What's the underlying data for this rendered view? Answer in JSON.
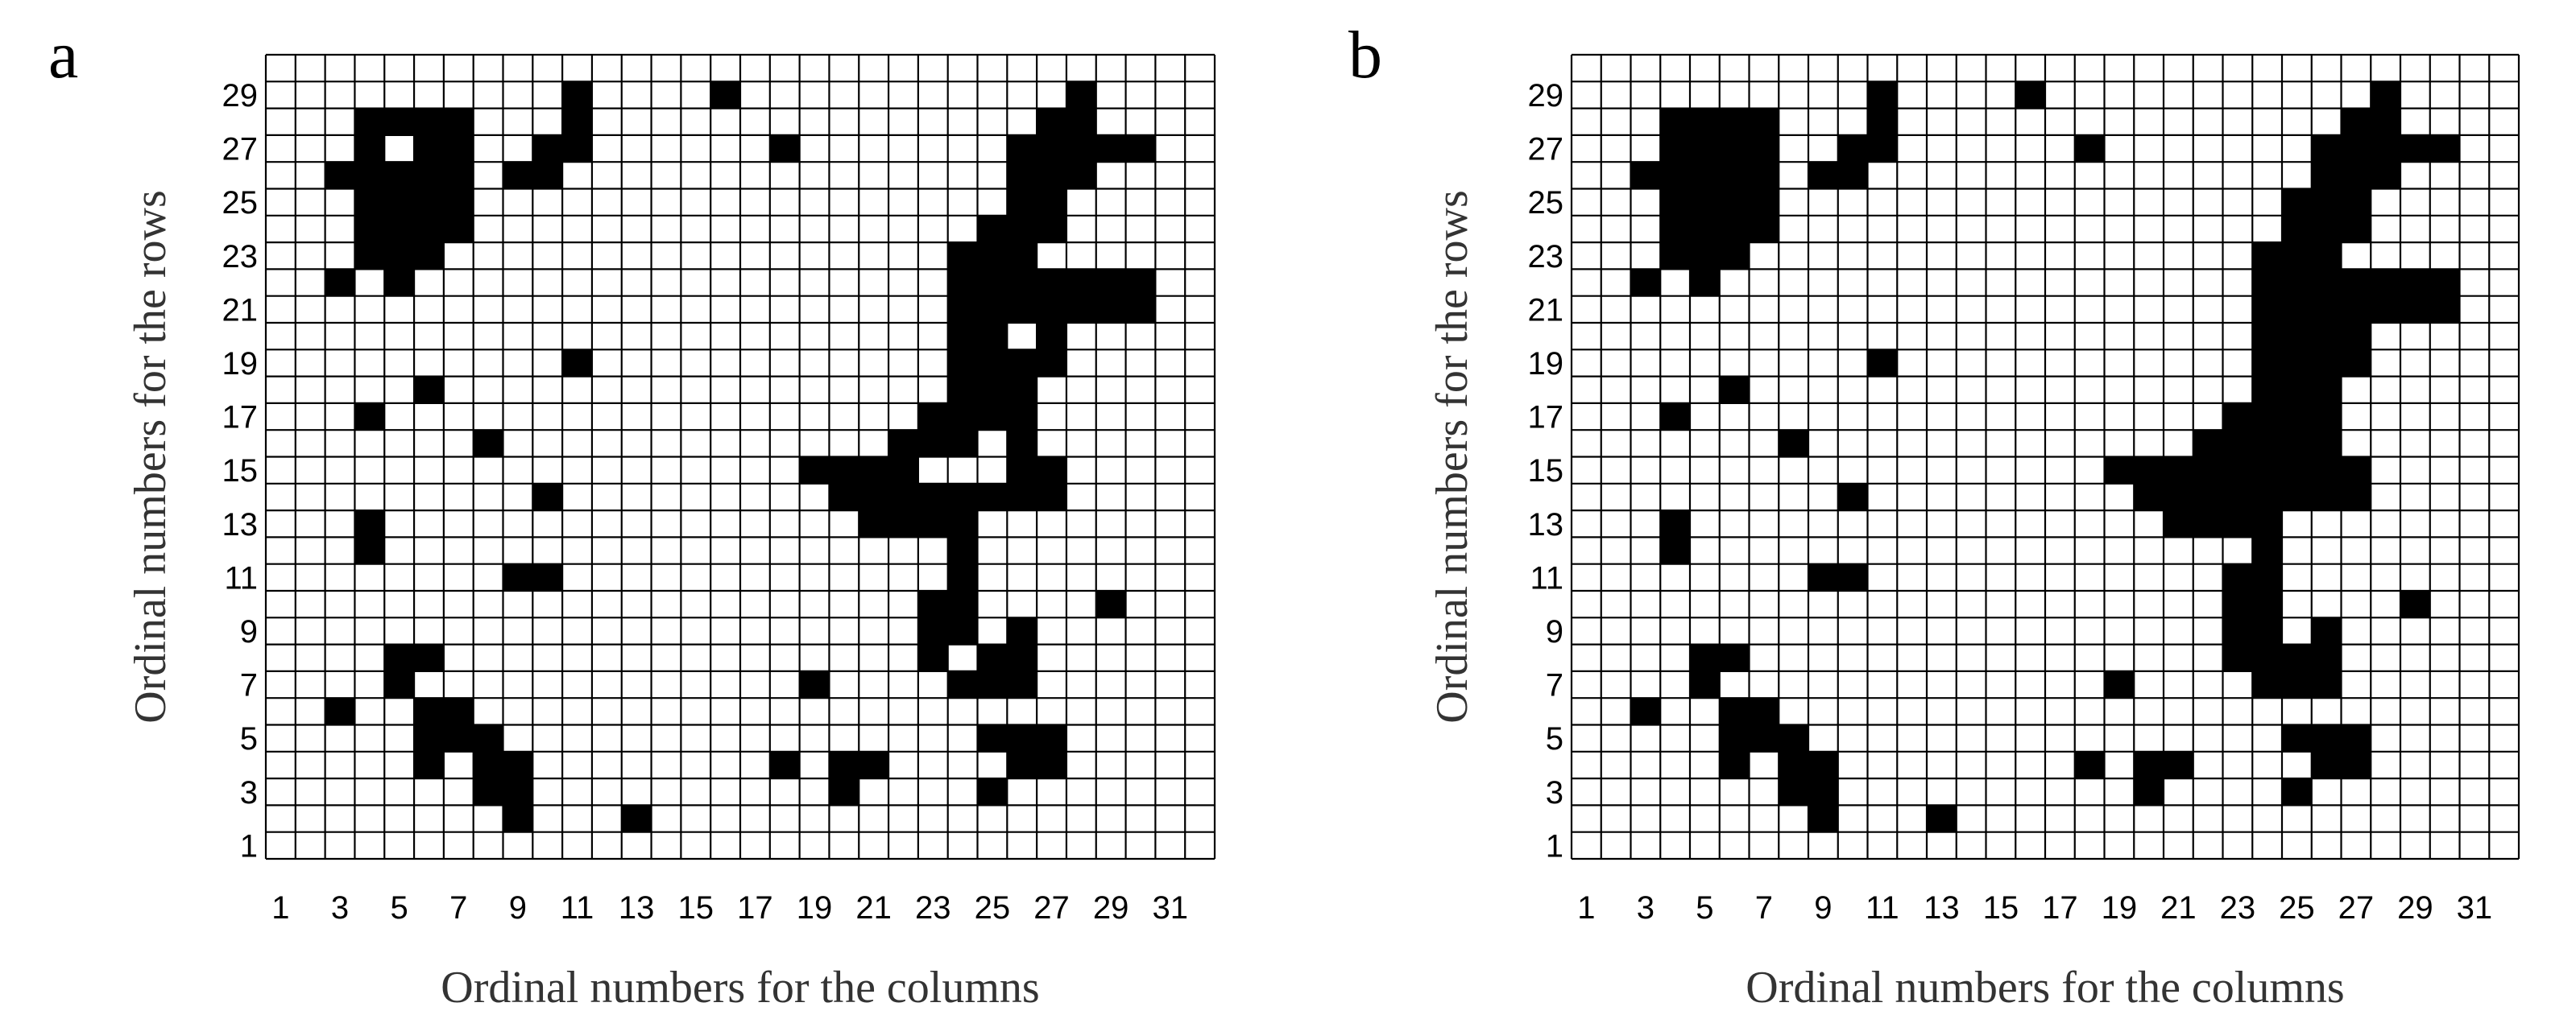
{
  "panels": [
    {
      "letter": "a"
    },
    {
      "letter": "b"
    }
  ],
  "chart_data": [
    {
      "type": "heatmap",
      "panel": "a",
      "title": "",
      "xlabel": "Ordinal numbers for the columns",
      "ylabel": "Ordinal numbers for the rows",
      "x_ticks": [
        1,
        3,
        5,
        7,
        9,
        11,
        13,
        15,
        17,
        19,
        21,
        23,
        25,
        27,
        29,
        31
      ],
      "y_ticks": [
        1,
        3,
        5,
        7,
        9,
        11,
        13,
        15,
        17,
        19,
        21,
        23,
        25,
        27,
        29
      ],
      "x_range": [
        1,
        32
      ],
      "y_range": [
        1,
        30
      ],
      "grid": true,
      "filled_color": "#000000",
      "empty_color": "#ffffff",
      "filled_cells": [
        {
          "row": 29,
          "cols": [
            11,
            16,
            28
          ]
        },
        {
          "row": 28,
          "cols": [
            4,
            5,
            6,
            7,
            11,
            27,
            28
          ]
        },
        {
          "row": 27,
          "cols": [
            4,
            6,
            7,
            10,
            11,
            18,
            26,
            27,
            28,
            29,
            30
          ]
        },
        {
          "row": 26,
          "cols": [
            3,
            4,
            5,
            6,
            7,
            9,
            10,
            26,
            27,
            28
          ]
        },
        {
          "row": 25,
          "cols": [
            4,
            5,
            6,
            7,
            26,
            27
          ]
        },
        {
          "row": 24,
          "cols": [
            4,
            5,
            6,
            7,
            25,
            26,
            27
          ]
        },
        {
          "row": 23,
          "cols": [
            4,
            5,
            6,
            24,
            25,
            26
          ]
        },
        {
          "row": 22,
          "cols": [
            3,
            5,
            24,
            25,
            26,
            27,
            28,
            29,
            30
          ]
        },
        {
          "row": 21,
          "cols": [
            24,
            25,
            26,
            27,
            28,
            29,
            30
          ]
        },
        {
          "row": 20,
          "cols": [
            24,
            25,
            27
          ]
        },
        {
          "row": 19,
          "cols": [
            11,
            24,
            25,
            26,
            27
          ]
        },
        {
          "row": 18,
          "cols": [
            6,
            24,
            25,
            26
          ]
        },
        {
          "row": 17,
          "cols": [
            4,
            23,
            24,
            25,
            26
          ]
        },
        {
          "row": 16,
          "cols": [
            8,
            22,
            23,
            24,
            26
          ]
        },
        {
          "row": 15,
          "cols": [
            19,
            20,
            21,
            22,
            26,
            27
          ]
        },
        {
          "row": 14,
          "cols": [
            10,
            20,
            21,
            22,
            23,
            24,
            25,
            26,
            27
          ]
        },
        {
          "row": 13,
          "cols": [
            4,
            21,
            22,
            23,
            24
          ]
        },
        {
          "row": 12,
          "cols": [
            4,
            24
          ]
        },
        {
          "row": 11,
          "cols": [
            9,
            10,
            24
          ]
        },
        {
          "row": 10,
          "cols": [
            23,
            24,
            29
          ]
        },
        {
          "row": 9,
          "cols": [
            23,
            24,
            26
          ]
        },
        {
          "row": 8,
          "cols": [
            5,
            6,
            23,
            25,
            26
          ]
        },
        {
          "row": 7,
          "cols": [
            5,
            19,
            24,
            25,
            26
          ]
        },
        {
          "row": 6,
          "cols": [
            3,
            6,
            7
          ]
        },
        {
          "row": 5,
          "cols": [
            6,
            7,
            8,
            25,
            26,
            27
          ]
        },
        {
          "row": 4,
          "cols": [
            6,
            8,
            9,
            18,
            20,
            21,
            26,
            27
          ]
        },
        {
          "row": 3,
          "cols": [
            8,
            9,
            20,
            25
          ]
        },
        {
          "row": 2,
          "cols": [
            9,
            13
          ]
        }
      ]
    },
    {
      "type": "heatmap",
      "panel": "b",
      "title": "",
      "xlabel": "Ordinal numbers for the columns",
      "ylabel": "Ordinal numbers for the rows",
      "x_ticks": [
        1,
        3,
        5,
        7,
        9,
        11,
        13,
        15,
        17,
        19,
        21,
        23,
        25,
        27,
        29,
        31
      ],
      "y_ticks": [
        1,
        3,
        5,
        7,
        9,
        11,
        13,
        15,
        17,
        19,
        21,
        23,
        25,
        27,
        29
      ],
      "x_range": [
        1,
        32
      ],
      "y_range": [
        1,
        30
      ],
      "grid": true,
      "filled_color": "#000000",
      "empty_color": "#ffffff",
      "filled_cells": [
        {
          "row": 29,
          "cols": [
            11,
            16,
            28
          ]
        },
        {
          "row": 28,
          "cols": [
            4,
            5,
            6,
            7,
            11,
            27,
            28
          ]
        },
        {
          "row": 27,
          "cols": [
            4,
            5,
            6,
            7,
            10,
            11,
            18,
            26,
            27,
            28,
            29,
            30
          ]
        },
        {
          "row": 26,
          "cols": [
            3,
            4,
            5,
            6,
            7,
            9,
            10,
            26,
            27,
            28
          ]
        },
        {
          "row": 25,
          "cols": [
            4,
            5,
            6,
            7,
            25,
            26,
            27
          ]
        },
        {
          "row": 24,
          "cols": [
            4,
            5,
            6,
            7,
            25,
            26,
            27
          ]
        },
        {
          "row": 23,
          "cols": [
            4,
            5,
            6,
            24,
            25,
            26
          ]
        },
        {
          "row": 22,
          "cols": [
            3,
            5,
            24,
            25,
            26,
            27,
            28,
            29,
            30
          ]
        },
        {
          "row": 21,
          "cols": [
            24,
            25,
            26,
            27,
            28,
            29,
            30
          ]
        },
        {
          "row": 20,
          "cols": [
            24,
            25,
            26,
            27
          ]
        },
        {
          "row": 19,
          "cols": [
            11,
            24,
            25,
            26,
            27
          ]
        },
        {
          "row": 18,
          "cols": [
            6,
            24,
            25,
            26
          ]
        },
        {
          "row": 17,
          "cols": [
            4,
            23,
            24,
            25,
            26
          ]
        },
        {
          "row": 16,
          "cols": [
            8,
            22,
            23,
            24,
            25,
            26
          ]
        },
        {
          "row": 15,
          "cols": [
            19,
            20,
            21,
            22,
            23,
            24,
            25,
            26,
            27
          ]
        },
        {
          "row": 14,
          "cols": [
            10,
            20,
            21,
            22,
            23,
            24,
            25,
            26,
            27
          ]
        },
        {
          "row": 13,
          "cols": [
            4,
            21,
            22,
            23,
            24
          ]
        },
        {
          "row": 12,
          "cols": [
            4,
            24
          ]
        },
        {
          "row": 11,
          "cols": [
            9,
            10,
            23,
            24
          ]
        },
        {
          "row": 10,
          "cols": [
            23,
            24,
            29
          ]
        },
        {
          "row": 9,
          "cols": [
            23,
            24,
            26
          ]
        },
        {
          "row": 8,
          "cols": [
            5,
            6,
            23,
            24,
            25,
            26
          ]
        },
        {
          "row": 7,
          "cols": [
            5,
            19,
            24,
            25,
            26
          ]
        },
        {
          "row": 6,
          "cols": [
            3,
            6,
            7
          ]
        },
        {
          "row": 5,
          "cols": [
            6,
            7,
            8,
            25,
            26,
            27
          ]
        },
        {
          "row": 4,
          "cols": [
            6,
            8,
            9,
            18,
            20,
            21,
            26,
            27
          ]
        },
        {
          "row": 3,
          "cols": [
            8,
            9,
            20,
            25
          ]
        },
        {
          "row": 2,
          "cols": [
            9,
            13
          ]
        }
      ]
    }
  ]
}
